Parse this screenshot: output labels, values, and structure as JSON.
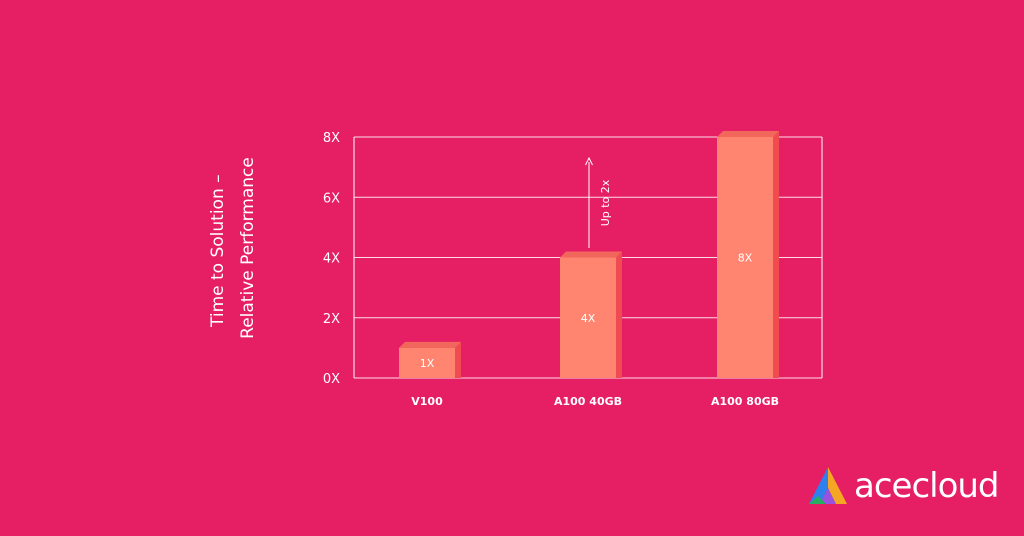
{
  "chart_data": {
    "type": "bar",
    "categories": [
      "V100",
      "A100 40GB",
      "A100 80GB"
    ],
    "values": [
      1,
      4,
      8
    ],
    "data_labels": [
      "1X",
      "4X",
      "8X"
    ],
    "ylabel_lines": [
      "Time to Solution –",
      "Relative Performance"
    ],
    "yticks": [
      "0X",
      "2X",
      "4X",
      "6X",
      "8X"
    ],
    "ylim": [
      0,
      8
    ],
    "grid": true,
    "annotation": "Up to 2x",
    "colors": {
      "background": "#e61e63",
      "bar_front": "#ff8570",
      "bar_top": "#f2675c",
      "bar_side": "#f04b50",
      "grid": "#ffffff"
    }
  },
  "brand": {
    "name": "acecloud",
    "logo_icon": "ace-logo-icon"
  }
}
